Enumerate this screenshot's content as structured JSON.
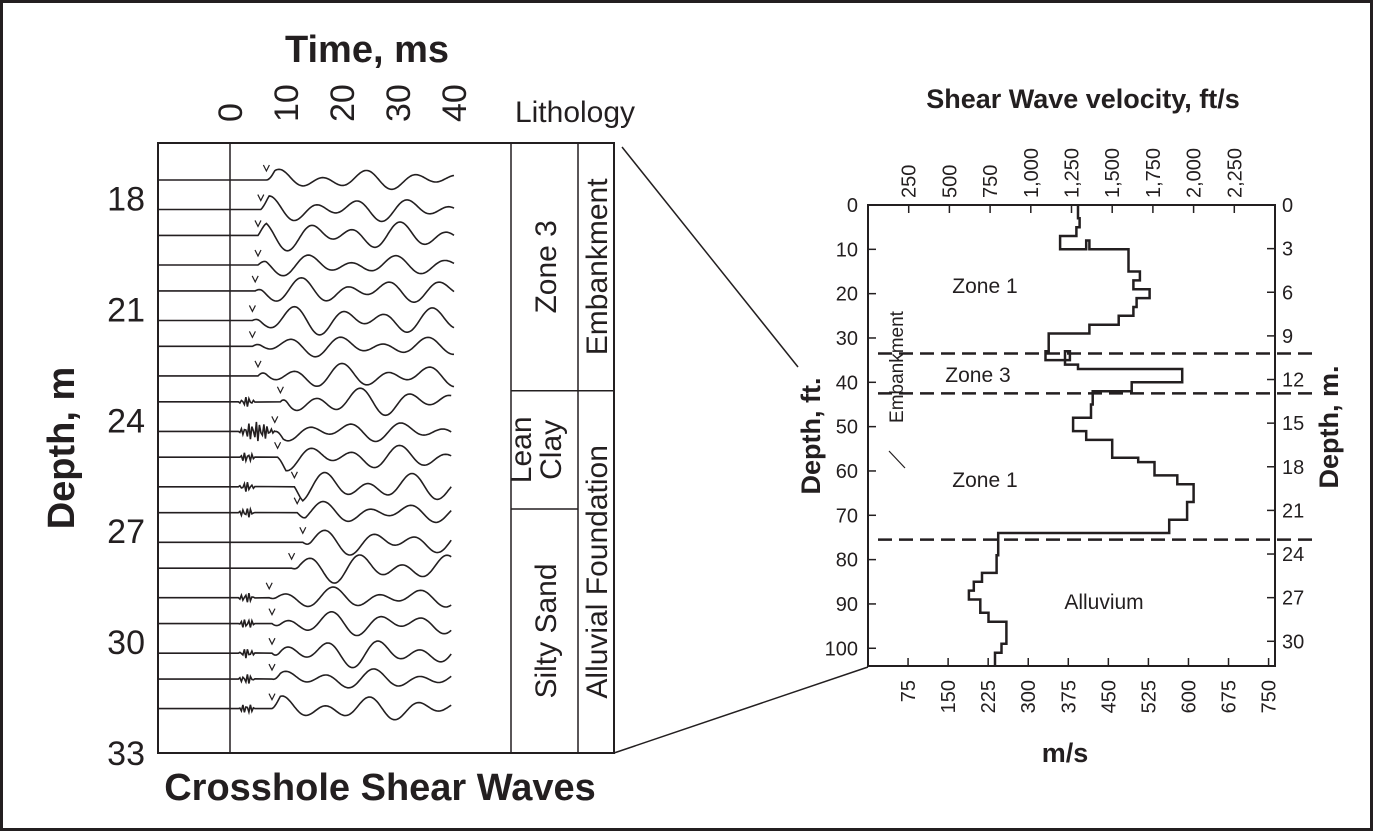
{
  "chart_data": [
    {
      "type": "line",
      "title": "Crosshole Shear Waves",
      "xlabel": "Time, ms",
      "ylabel": "Depth, m",
      "x_ticks": [
        "0",
        "10",
        "20",
        "30",
        "40"
      ],
      "y_ticks": [
        "18",
        "21",
        "24",
        "27",
        "30",
        "33"
      ],
      "xlim": [
        0,
        40
      ],
      "ylim": [
        16.5,
        33
      ],
      "trace_depths_m": [
        17.5,
        18.3,
        19.0,
        19.8,
        20.5,
        21.3,
        22.0,
        22.8,
        23.5,
        24.3,
        25.0,
        25.8,
        26.5,
        27.3,
        28.0,
        28.8,
        29.5,
        30.3,
        31.0,
        31.8
      ],
      "first_arrival_ms": [
        6.5,
        5.5,
        5.0,
        5.0,
        4.5,
        4.0,
        4.0,
        5.0,
        9.0,
        8.0,
        8.5,
        11.5,
        12.0,
        13.0,
        11.0,
        7.0,
        7.5,
        7.5,
        7.5,
        7.5
      ],
      "lithology": {
        "header": "Lithology",
        "units": [
          {
            "label": "Zone 3",
            "top_m": 16.5,
            "bottom_m": 23.2
          },
          {
            "label": "Lean Clay",
            "top_m": 23.2,
            "bottom_m": 26.4
          },
          {
            "label": "Silty Sand",
            "top_m": 26.4,
            "bottom_m": 33
          }
        ],
        "groups": [
          {
            "label": "Embankment",
            "top_m": 16.5,
            "bottom_m": 23.2
          },
          {
            "label": "Alluvial Foundation",
            "top_m": 23.2,
            "bottom_m": 33
          }
        ]
      }
    },
    {
      "type": "line",
      "title": "",
      "x_top_label": "Shear Wave velocity, ft/s",
      "x_top_ticks": [
        "250",
        "500",
        "750",
        "1,000",
        "1,250",
        "1,500",
        "1,750",
        "2,000",
        "2,250"
      ],
      "x_bottom_label": "m/s",
      "x_bottom_ticks": [
        "75",
        "150",
        "225",
        "300",
        "375",
        "450",
        "525",
        "600",
        "675",
        "750"
      ],
      "y_left_label": "Depth, ft.",
      "y_left_ticks": [
        "0",
        "10",
        "20",
        "30",
        "40",
        "50",
        "60",
        "70",
        "80",
        "90",
        "100"
      ],
      "y_right_label": "Depth, m.",
      "y_right_ticks": [
        "0",
        "3",
        "6",
        "9",
        "12",
        "15",
        "18",
        "21",
        "24",
        "27",
        "30"
      ],
      "xlim_ft_s": [
        0,
        2500
      ],
      "ylim_ft": [
        0,
        104
      ],
      "profile": {
        "velocity_ft_s": [
          1290,
          1290,
          1300,
          1300,
          1280,
          1280,
          1180,
          1180,
          1340,
          1340,
          1360,
          1360,
          1600,
          1600,
          1670,
          1670,
          1630,
          1630,
          1730,
          1730,
          1650,
          1650,
          1630,
          1630,
          1540,
          1540,
          1360,
          1360,
          1110,
          1110,
          1090,
          1090,
          1240,
          1240,
          1210,
          1210,
          1290,
          1290,
          1930,
          1930,
          1620,
          1620,
          1380,
          1380,
          1370,
          1370,
          1260,
          1260,
          1340,
          1340,
          1500,
          1500,
          1660,
          1660,
          1760,
          1760,
          1900,
          1900,
          2000,
          2000,
          1960,
          1960,
          1850,
          1850,
          800,
          800,
          790,
          790,
          700,
          700,
          650,
          650,
          620,
          620,
          690,
          690,
          740,
          740,
          850,
          850,
          820,
          820,
          780,
          780
        ],
        "depth_ft": [
          0,
          3,
          3,
          5,
          5,
          7,
          7,
          10,
          10,
          8,
          8,
          10,
          10,
          15,
          15,
          17,
          17,
          19,
          19,
          21,
          21,
          23,
          23,
          25,
          25,
          27,
          27,
          29,
          29,
          33,
          33,
          35,
          35,
          33,
          33,
          36,
          36,
          37,
          37,
          40,
          40,
          42,
          42,
          45,
          45,
          48,
          48,
          51,
          51,
          53,
          53,
          57,
          57,
          58,
          58,
          61,
          61,
          63,
          63,
          67,
          67,
          71,
          71,
          74,
          74,
          79,
          79,
          83,
          83,
          85,
          85,
          87,
          87,
          89,
          89,
          92,
          92,
          94,
          94,
          99,
          99,
          101,
          101,
          104
        ]
      },
      "boundaries_ft": [
        33.5,
        42.5,
        75.5
      ],
      "zone_labels": [
        "Zone 1",
        "Zone 3",
        "Zone 1",
        "Alluvium"
      ],
      "side_label": "Embankment"
    }
  ]
}
